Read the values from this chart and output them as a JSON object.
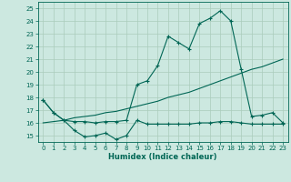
{
  "xlabel": "Humidex (Indice chaleur)",
  "bg_color": "#cce8e0",
  "line_color": "#006655",
  "grid_color": "#aaccbb",
  "xlim": [
    -0.5,
    23.5
  ],
  "ylim": [
    14.5,
    25.5
  ],
  "yticks": [
    15,
    16,
    17,
    18,
    19,
    20,
    21,
    22,
    23,
    24,
    25
  ],
  "xticks": [
    0,
    1,
    2,
    3,
    4,
    5,
    6,
    7,
    8,
    9,
    10,
    11,
    12,
    13,
    14,
    15,
    16,
    17,
    18,
    19,
    20,
    21,
    22,
    23
  ],
  "line1_x": [
    0,
    1,
    2,
    3,
    4,
    5,
    6,
    7,
    8,
    9,
    10,
    11,
    12,
    13,
    14,
    15,
    16,
    17,
    18,
    19,
    20,
    21,
    22,
    23
  ],
  "line1_y": [
    17.8,
    16.8,
    16.2,
    15.4,
    14.9,
    15.0,
    15.2,
    14.7,
    15.0,
    16.2,
    15.9,
    15.9,
    15.9,
    15.9,
    15.9,
    16.0,
    16.0,
    16.1,
    16.1,
    16.0,
    15.9,
    15.9,
    15.9,
    15.9
  ],
  "line2_x": [
    0,
    1,
    2,
    3,
    4,
    5,
    6,
    7,
    8,
    9,
    10,
    11,
    12,
    13,
    14,
    15,
    16,
    17,
    18,
    19,
    20,
    21,
    22,
    23
  ],
  "line2_y": [
    16.0,
    16.1,
    16.2,
    16.4,
    16.5,
    16.6,
    16.8,
    16.9,
    17.1,
    17.3,
    17.5,
    17.7,
    18.0,
    18.2,
    18.4,
    18.7,
    19.0,
    19.3,
    19.6,
    19.9,
    20.2,
    20.4,
    20.7,
    21.0
  ],
  "line3_x": [
    0,
    1,
    2,
    3,
    4,
    5,
    6,
    7,
    8,
    9,
    10,
    11,
    12,
    13,
    14,
    15,
    16,
    17,
    18,
    19,
    20,
    21,
    22,
    23
  ],
  "line3_y": [
    17.8,
    16.8,
    16.2,
    16.1,
    16.1,
    16.0,
    16.1,
    16.1,
    16.2,
    19.0,
    19.3,
    20.5,
    22.8,
    22.3,
    21.8,
    23.8,
    24.2,
    24.8,
    24.0,
    20.2,
    16.5,
    16.6,
    16.8,
    16.0
  ]
}
